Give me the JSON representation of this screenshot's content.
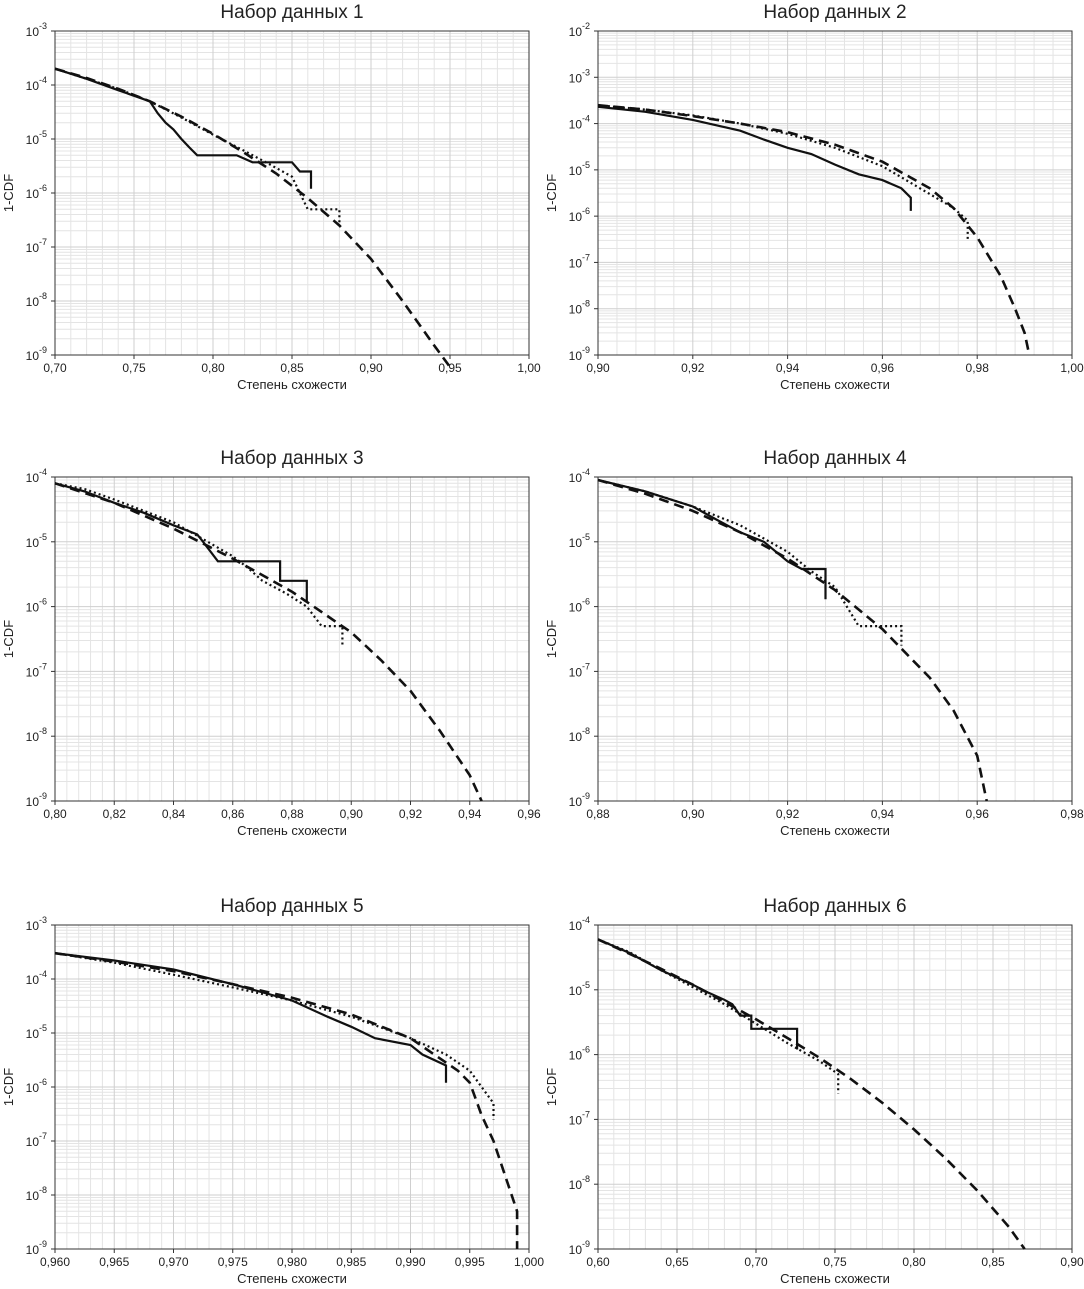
{
  "chart_data": [
    {
      "type": "line",
      "title": "Набор данных 1",
      "xlabel": "Степень схожести",
      "ylabel": "1-CDF",
      "xlim": [
        0.7,
        1.0
      ],
      "ylim_log10": [
        -9,
        -3
      ],
      "x_ticks": [
        0.7,
        0.75,
        0.8,
        0.85,
        0.9,
        0.95,
        1.0
      ],
      "x_tick_labels": [
        "0,70",
        "0,75",
        "0,80",
        "0,85",
        "0,90",
        "0,95",
        "1,00"
      ],
      "y_ticks_exp": [
        -9,
        -8,
        -7,
        -6,
        -5,
        -4,
        -3
      ],
      "y_tick_labels": [
        "10",
        "10",
        "10",
        "10",
        "10",
        "10",
        "10"
      ],
      "y_tick_exponents": [
        "-9",
        "-8",
        "-7",
        "-6",
        "-5",
        "-4",
        "-3"
      ],
      "series": [
        {
          "name": "solid",
          "style": "solid",
          "x": [
            0.7,
            0.72,
            0.74,
            0.76,
            0.765,
            0.77,
            0.775,
            0.78,
            0.785,
            0.79,
            0.815,
            0.825,
            0.84,
            0.85,
            0.855,
            0.862,
            0.862
          ],
          "y": [
            0.0002,
            0.00013,
            8e-05,
            5e-05,
            3e-05,
            2e-05,
            1.5e-05,
            1e-05,
            7e-06,
            5e-06,
            5e-06,
            3.7e-06,
            3.7e-06,
            3.7e-06,
            2.5e-06,
            2.5e-06,
            1.2e-06
          ]
        },
        {
          "name": "dotted",
          "style": "dotted",
          "x": [
            0.7,
            0.72,
            0.74,
            0.76,
            0.78,
            0.8,
            0.82,
            0.835,
            0.85,
            0.855,
            0.86,
            0.88,
            0.88
          ],
          "y": [
            0.0002,
            0.00013,
            8.5e-05,
            5e-05,
            2.5e-05,
            1.2e-05,
            6e-06,
            3.5e-06,
            2e-06,
            1e-06,
            5e-07,
            5e-07,
            2.5e-07
          ]
        },
        {
          "name": "dashed",
          "style": "dashed",
          "x": [
            0.7,
            0.72,
            0.74,
            0.76,
            0.78,
            0.8,
            0.82,
            0.84,
            0.86,
            0.88,
            0.9,
            0.92,
            0.94,
            0.95
          ],
          "y": [
            0.0002,
            0.000135,
            8.5e-05,
            5e-05,
            2.6e-05,
            1.25e-05,
            5.5e-06,
            2.3e-06,
            8e-07,
            2.5e-07,
            6e-08,
            1e-08,
            1.5e-09,
            6e-10
          ]
        }
      ]
    },
    {
      "type": "line",
      "title": "Набор данных 2",
      "xlabel": "Степень схожести",
      "ylabel": "1-CDF",
      "xlim": [
        0.9,
        1.0
      ],
      "ylim_log10": [
        -9,
        -2
      ],
      "x_ticks": [
        0.9,
        0.92,
        0.94,
        0.96,
        0.98,
        1.0
      ],
      "x_tick_labels": [
        "0,90",
        "0,92",
        "0,94",
        "0,96",
        "0,98",
        "1,00"
      ],
      "y_ticks_exp": [
        -9,
        -8,
        -7,
        -6,
        -5,
        -4,
        -3,
        -2
      ],
      "y_tick_labels": [
        "10",
        "10",
        "10",
        "10",
        "10",
        "10",
        "10",
        "10"
      ],
      "y_tick_exponents": [
        "-9",
        "-8",
        "-7",
        "-6",
        "-5",
        "-4",
        "-3",
        "-2"
      ],
      "series": [
        {
          "name": "solid",
          "style": "solid",
          "x": [
            0.9,
            0.91,
            0.92,
            0.93,
            0.935,
            0.94,
            0.945,
            0.95,
            0.955,
            0.96,
            0.964,
            0.966,
            0.966
          ],
          "y": [
            0.00023,
            0.00018,
            0.00012,
            7e-05,
            4.5e-05,
            3e-05,
            2.2e-05,
            1.3e-05,
            8e-06,
            6e-06,
            4e-06,
            2.5e-06,
            1.3e-06
          ]
        },
        {
          "name": "dotted",
          "style": "dotted",
          "x": [
            0.9,
            0.91,
            0.92,
            0.93,
            0.94,
            0.95,
            0.96,
            0.965,
            0.97,
            0.975,
            0.978,
            0.978
          ],
          "y": [
            0.00025,
            0.0002,
            0.00015,
            0.0001,
            6e-05,
            3e-05,
            1.2e-05,
            6e-06,
            3e-06,
            1.5e-06,
            8e-07,
            3e-07
          ]
        },
        {
          "name": "dashed",
          "style": "dashed",
          "x": [
            0.9,
            0.91,
            0.92,
            0.93,
            0.94,
            0.95,
            0.96,
            0.97,
            0.975,
            0.98,
            0.985,
            0.988,
            0.99,
            0.991
          ],
          "y": [
            0.00025,
            0.0002,
            0.000145,
            0.0001,
            6.5e-05,
            3.5e-05,
            1.5e-05,
            4e-06,
            1.5e-06,
            3.5e-07,
            5e-08,
            1e-08,
            3e-09,
            1e-09
          ]
        }
      ]
    },
    {
      "type": "line",
      "title": "Набор данных 3",
      "xlabel": "Степень схожести",
      "ylabel": "1-CDF",
      "xlim": [
        0.8,
        0.96
      ],
      "ylim_log10": [
        -9,
        -4
      ],
      "x_ticks": [
        0.8,
        0.82,
        0.84,
        0.86,
        0.88,
        0.9,
        0.92,
        0.94,
        0.96
      ],
      "x_tick_labels": [
        "0,80",
        "0,82",
        "0,84",
        "0,86",
        "0,88",
        "0,90",
        "0,92",
        "0,94",
        "0,96"
      ],
      "y_ticks_exp": [
        -9,
        -8,
        -7,
        -6,
        -5,
        -4
      ],
      "y_tick_labels": [
        "10",
        "10",
        "10",
        "10",
        "10",
        "10"
      ],
      "y_tick_exponents": [
        "-9",
        "-8",
        "-7",
        "-6",
        "-5",
        "-4"
      ],
      "series": [
        {
          "name": "solid",
          "style": "solid",
          "x": [
            0.8,
            0.81,
            0.82,
            0.83,
            0.84,
            0.848,
            0.85,
            0.855,
            0.876,
            0.876,
            0.885,
            0.885
          ],
          "y": [
            8e-05,
            6e-05,
            4e-05,
            2.8e-05,
            1.8e-05,
            1.3e-05,
            1e-05,
            5e-06,
            5e-06,
            2.5e-06,
            2.5e-06,
            1.2e-06
          ]
        },
        {
          "name": "dotted",
          "style": "dotted",
          "x": [
            0.8,
            0.81,
            0.82,
            0.83,
            0.84,
            0.85,
            0.86,
            0.865,
            0.87,
            0.878,
            0.885,
            0.89,
            0.897,
            0.897
          ],
          "y": [
            8e-05,
            6.5e-05,
            4.5e-05,
            3e-05,
            2e-05,
            1.1e-05,
            6e-06,
            4e-06,
            2.5e-06,
            1.6e-06,
            1e-06,
            5e-07,
            5e-07,
            2.5e-07
          ]
        },
        {
          "name": "dashed",
          "style": "dashed",
          "x": [
            0.8,
            0.82,
            0.84,
            0.86,
            0.88,
            0.9,
            0.91,
            0.92,
            0.93,
            0.94,
            0.944
          ],
          "y": [
            8e-05,
            4e-05,
            1.6e-05,
            5.5e-06,
            1.7e-06,
            4e-07,
            1.5e-07,
            5e-08,
            1.2e-08,
            2.5e-09,
            1e-09
          ]
        }
      ]
    },
    {
      "type": "line",
      "title": "Набор данных 4",
      "xlabel": "Степень схожести",
      "ylabel": "1-CDF",
      "xlim": [
        0.88,
        0.98
      ],
      "ylim_log10": [
        -9,
        -4
      ],
      "x_ticks": [
        0.88,
        0.9,
        0.92,
        0.94,
        0.96,
        0.98
      ],
      "x_tick_labels": [
        "0,88",
        "0,90",
        "0,92",
        "0,94",
        "0,96",
        "0,98"
      ],
      "y_ticks_exp": [
        -9,
        -8,
        -7,
        -6,
        -5,
        -4
      ],
      "y_tick_labels": [
        "10",
        "10",
        "10",
        "10",
        "10",
        "10"
      ],
      "y_tick_exponents": [
        "-9",
        "-8",
        "-7",
        "-6",
        "-5",
        "-4"
      ],
      "series": [
        {
          "name": "solid",
          "style": "solid",
          "x": [
            0.88,
            0.89,
            0.9,
            0.905,
            0.91,
            0.915,
            0.92,
            0.923,
            0.928,
            0.928
          ],
          "y": [
            9e-05,
            6e-05,
            3.5e-05,
            2.2e-05,
            1.4e-05,
            1e-05,
            5e-06,
            3.8e-06,
            3.8e-06,
            1.3e-06
          ]
        },
        {
          "name": "dotted",
          "style": "dotted",
          "x": [
            0.88,
            0.89,
            0.9,
            0.91,
            0.92,
            0.925,
            0.93,
            0.935,
            0.944,
            0.944
          ],
          "y": [
            9e-05,
            6e-05,
            3.5e-05,
            1.8e-05,
            7e-06,
            3.5e-06,
            2e-06,
            5e-07,
            5e-07,
            2.5e-07
          ]
        },
        {
          "name": "dashed",
          "style": "dashed",
          "x": [
            0.88,
            0.89,
            0.9,
            0.91,
            0.92,
            0.93,
            0.94,
            0.95,
            0.955,
            0.96,
            0.962
          ],
          "y": [
            9e-05,
            5.5e-05,
            3e-05,
            1.4e-05,
            5.5e-06,
            1.8e-06,
            4.5e-07,
            8e-08,
            2.5e-08,
            5e-09,
            1e-09
          ]
        }
      ]
    },
    {
      "type": "line",
      "title": "Набор данных 5",
      "xlabel": "Степень схожести",
      "ylabel": "1-CDF",
      "xlim": [
        0.96,
        1.0
      ],
      "ylim_log10": [
        -9,
        -3
      ],
      "x_ticks": [
        0.96,
        0.965,
        0.97,
        0.975,
        0.98,
        0.985,
        0.99,
        0.995,
        1.0
      ],
      "x_tick_labels": [
        "0,960",
        "0,965",
        "0,970",
        "0,975",
        "0,980",
        "0,985",
        "0,990",
        "0,995",
        "1,000"
      ],
      "y_ticks_exp": [
        -9,
        -8,
        -7,
        -6,
        -5,
        -4,
        -3
      ],
      "y_tick_labels": [
        "10",
        "10",
        "10",
        "10",
        "10",
        "10",
        "10"
      ],
      "y_tick_exponents": [
        "-9",
        "-8",
        "-7",
        "-6",
        "-5",
        "-4",
        "-3"
      ],
      "series": [
        {
          "name": "solid",
          "style": "solid",
          "x": [
            0.96,
            0.965,
            0.97,
            0.975,
            0.98,
            0.983,
            0.985,
            0.987,
            0.99,
            0.991,
            0.993,
            0.993
          ],
          "y": [
            0.0003,
            0.00022,
            0.00015,
            8e-05,
            4e-05,
            2e-05,
            1.3e-05,
            8e-06,
            6e-06,
            4e-06,
            2.5e-06,
            1.2e-06
          ]
        },
        {
          "name": "dotted",
          "style": "dotted",
          "x": [
            0.96,
            0.965,
            0.97,
            0.975,
            0.98,
            0.985,
            0.99,
            0.993,
            0.995,
            0.996,
            0.997,
            0.997
          ],
          "y": [
            0.0003,
            0.0002,
            0.00012,
            7e-05,
            4e-05,
            2e-05,
            8e-06,
            4e-06,
            2e-06,
            1e-06,
            5e-07,
            2.5e-07
          ]
        },
        {
          "name": "dashed",
          "style": "dashed",
          "x": [
            0.96,
            0.965,
            0.97,
            0.975,
            0.98,
            0.985,
            0.99,
            0.992,
            0.994,
            0.995,
            0.996,
            0.997,
            0.999,
            0.999
          ],
          "y": [
            0.0003,
            0.00021,
            0.00014,
            8e-05,
            4.5e-05,
            2.2e-05,
            8e-06,
            4e-06,
            2e-06,
            1.2e-06,
            3e-07,
            1e-07,
            5e-09,
            1e-09
          ]
        }
      ]
    },
    {
      "type": "line",
      "title": "Набор данных 6",
      "xlabel": "Степень схожести",
      "ylabel": "1-CDF",
      "xlim": [
        0.6,
        0.9
      ],
      "ylim_log10": [
        -9,
        -4
      ],
      "x_ticks": [
        0.6,
        0.65,
        0.7,
        0.75,
        0.8,
        0.85,
        0.9
      ],
      "x_tick_labels": [
        "0,60",
        "0,65",
        "0,70",
        "0,75",
        "0,80",
        "0,85",
        "0,90"
      ],
      "y_ticks_exp": [
        -9,
        -8,
        -7,
        -6,
        -5,
        -4
      ],
      "y_tick_labels": [
        "10",
        "10",
        "10",
        "10",
        "10",
        "10"
      ],
      "y_tick_exponents": [
        "-9",
        "-8",
        "-7",
        "-6",
        "-5",
        "-4"
      ],
      "series": [
        {
          "name": "solid",
          "style": "solid",
          "x": [
            0.6,
            0.62,
            0.64,
            0.66,
            0.67,
            0.68,
            0.685,
            0.69,
            0.697,
            0.697,
            0.726,
            0.726
          ],
          "y": [
            6e-05,
            3.7e-05,
            2e-05,
            1.2e-05,
            9e-06,
            7e-06,
            6e-06,
            4e-06,
            4e-06,
            2.5e-06,
            2.5e-06,
            1.2e-06
          ]
        },
        {
          "name": "dotted",
          "style": "dotted",
          "x": [
            0.6,
            0.62,
            0.64,
            0.66,
            0.68,
            0.7,
            0.72,
            0.74,
            0.752,
            0.752
          ],
          "y": [
            6e-05,
            3.8e-05,
            2e-05,
            1.1e-05,
            6e-06,
            3e-06,
            1.5e-06,
            8e-07,
            5e-07,
            2.5e-07
          ]
        },
        {
          "name": "dashed",
          "style": "dashed",
          "x": [
            0.6,
            0.62,
            0.64,
            0.66,
            0.68,
            0.7,
            0.72,
            0.74,
            0.76,
            0.78,
            0.8,
            0.82,
            0.84,
            0.86,
            0.87
          ],
          "y": [
            6e-05,
            3.6e-05,
            2.1e-05,
            1.2e-05,
            6.5e-06,
            3.5e-06,
            1.8e-06,
            9e-07,
            4.2e-07,
            1.8e-07,
            7e-08,
            2.5e-08,
            8e-09,
            2.2e-09,
            1e-09
          ]
        }
      ]
    }
  ]
}
